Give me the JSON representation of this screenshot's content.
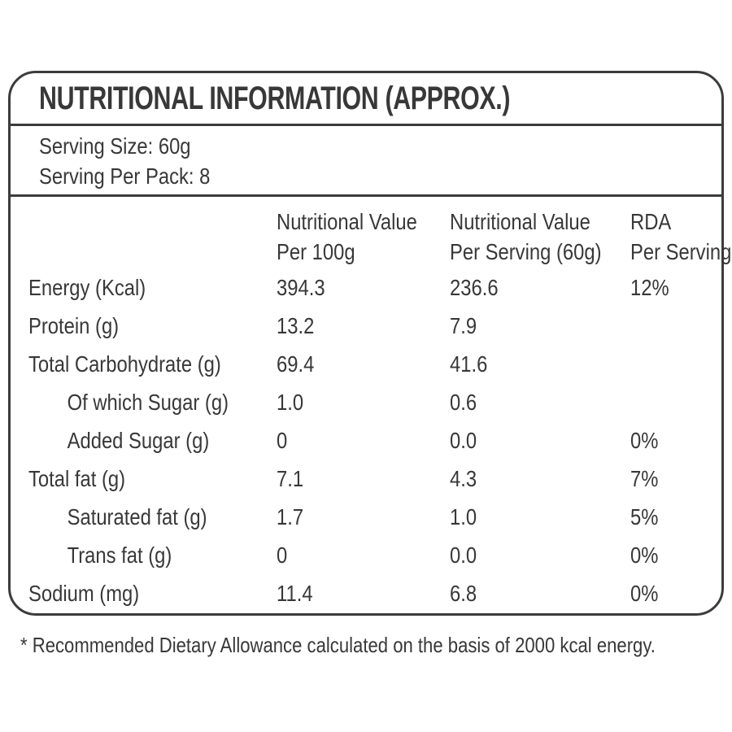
{
  "label": {
    "title": "NUTRITIONAL INFORMATION (APPROX.)",
    "serving_size": "Serving Size: 60g",
    "serving_per_pack": "Serving Per Pack: 8",
    "footnote": "* Recommended Dietary Allowance calculated on the basis of 2000 kcal energy."
  },
  "table": {
    "columns": [
      "Nutritional Value\nPer 100g",
      "Nutritional Value\nPer Serving (60g)",
      "RDA\nPer Serving*"
    ],
    "rows": [
      {
        "label": "Energy (Kcal)",
        "per_100g": "394.3",
        "per_serving": "236.6",
        "rda": "12%"
      },
      {
        "label": "Protein (g)",
        "per_100g": "13.2",
        "per_serving": "7.9",
        "rda": ""
      },
      {
        "label": "Total Carbohydrate (g)",
        "per_100g": "69.4",
        "per_serving": "41.6",
        "rda": ""
      },
      {
        "label": "Of which Sugar (g)",
        "per_100g": "1.0",
        "per_serving": "0.6",
        "rda": ""
      },
      {
        "label": "Added Sugar (g)",
        "per_100g": "0",
        "per_serving": "0.0",
        "rda": "0%"
      },
      {
        "label": "Total fat (g)",
        "per_100g": "7.1",
        "per_serving": "4.3",
        "rda": "7%"
      },
      {
        "label": "Saturated fat (g)",
        "per_100g": "1.7",
        "per_serving": "1.0",
        "rda": "5%"
      },
      {
        "label": "Trans fat (g)",
        "per_100g": "0",
        "per_serving": "0.0",
        "rda": "0%"
      },
      {
        "label": "Sodium (mg)",
        "per_100g": "11.4",
        "per_serving": "6.8",
        "rda": "0%"
      }
    ]
  },
  "colors": {
    "text": "#383838",
    "border": "#3c3c3c",
    "background": "#ffffff"
  }
}
